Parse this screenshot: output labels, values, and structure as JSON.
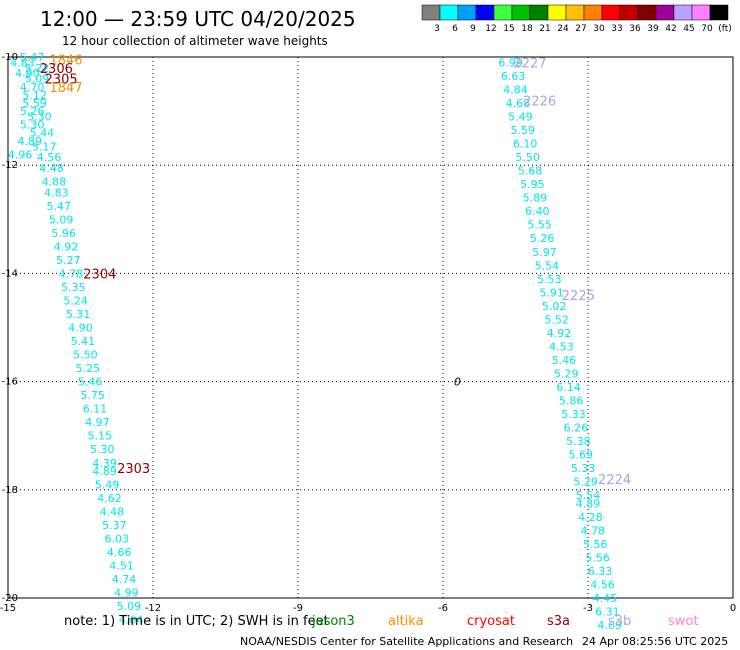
{
  "title": "12:00 — 23:59 UTC 04/20/2025",
  "subtitle": "12 hour collection of altimeter wave heights",
  "note": "note: 1) Time is in UTC; 2) SWH is in feet",
  "satellites": [
    {
      "name": "jason3",
      "color": "#008000"
    },
    {
      "name": "altika",
      "color": "#ff8c00"
    },
    {
      "name": "cryosat",
      "color": "#ff0000"
    },
    {
      "name": "s3a",
      "color": "#8b0000"
    },
    {
      "name": "s3b",
      "color": "#b0a0e0"
    },
    {
      "name": "swot",
      "color": "#ff80d0"
    }
  ],
  "credit": "NOAA/NESDIS Center for Satellite Applications and Research",
  "timestamp": "24 Apr 08:25:56 UTC 2025",
  "colorbar": {
    "labels": [
      "3",
      "6",
      "9",
      "12",
      "15",
      "18",
      "21",
      "24",
      "27",
      "30",
      "33",
      "36",
      "39",
      "42",
      "45",
      "70",
      "(ft)"
    ],
    "colors": [
      "#808080",
      "#00ffff",
      "#00a0ff",
      "#0000ff",
      "#40ff40",
      "#00c000",
      "#008000",
      "#ffff00",
      "#ffc000",
      "#ff8000",
      "#ff0000",
      "#c00000",
      "#800000",
      "#a000a0",
      "#c0a0ff",
      "#ff80ff",
      "#000000"
    ]
  },
  "chart_data": {
    "type": "scatter",
    "xlim": [
      -15,
      0
    ],
    "ylim": [
      -20,
      -10
    ],
    "x_ticks": [
      "-15",
      "-12",
      "-9",
      "-6",
      "-3",
      "0"
    ],
    "y_ticks": [
      "-10",
      "-12",
      "-14",
      "-16",
      "-18",
      "-20"
    ],
    "grid": true,
    "annotations": [
      {
        "text": "0",
        "x": -5.7,
        "y": -16.0,
        "color": "#000000"
      }
    ],
    "pass_labels": [
      {
        "text": "1846",
        "x": -13.8,
        "y": -10.05,
        "color": "#ff8c00"
      },
      {
        "text": "2306",
        "x": -14.0,
        "y": -10.2,
        "color": "#8b0000"
      },
      {
        "text": "2305",
        "x": -13.9,
        "y": -10.4,
        "color": "#8b0000"
      },
      {
        "text": "1847",
        "x": -13.8,
        "y": -10.55,
        "color": "#ff8c00"
      },
      {
        "text": "2304",
        "x": -13.1,
        "y": -14.0,
        "color": "#8b0000"
      },
      {
        "text": "2303",
        "x": -12.4,
        "y": -17.6,
        "color": "#8b0000"
      },
      {
        "text": "2227",
        "x": -4.2,
        "y": -10.1,
        "color": "#b0a0e0"
      },
      {
        "text": "2226",
        "x": -4.0,
        "y": -10.8,
        "color": "#b0a0e0"
      },
      {
        "text": "2225",
        "x": -3.2,
        "y": -14.4,
        "color": "#b0a0e0"
      },
      {
        "text": "2224",
        "x": -2.45,
        "y": -17.8,
        "color": "#b0a0e0"
      }
    ],
    "series": [
      {
        "color": "#00e5ee",
        "points": [
          {
            "x": -14.5,
            "y": -10.0,
            "v": "5.47"
          },
          {
            "x": -14.7,
            "y": -10.1,
            "v": "4.83"
          },
          {
            "x": -14.4,
            "y": -10.2,
            "v": "5.22"
          },
          {
            "x": -14.6,
            "y": -10.3,
            "v": "4.90"
          },
          {
            "x": -14.4,
            "y": -10.4,
            "v": "5.09"
          },
          {
            "x": -14.5,
            "y": -10.55,
            "v": "4.70"
          },
          {
            "x": -14.45,
            "y": -10.7,
            "v": "5.12"
          },
          {
            "x": -14.45,
            "y": -10.85,
            "v": "5.59"
          },
          {
            "x": -14.5,
            "y": -11.0,
            "v": "5.26"
          },
          {
            "x": -14.35,
            "y": -11.1,
            "v": "5.30"
          },
          {
            "x": -14.5,
            "y": -11.25,
            "v": "5.30"
          },
          {
            "x": -14.3,
            "y": -11.4,
            "v": "5.44"
          },
          {
            "x": -14.55,
            "y": -11.55,
            "v": "4.89"
          },
          {
            "x": -14.25,
            "y": -11.65,
            "v": "5.17"
          },
          {
            "x": -14.75,
            "y": -11.8,
            "v": "4.96"
          },
          {
            "x": -14.15,
            "y": -11.85,
            "v": "4.56"
          },
          {
            "x": -14.1,
            "y": -12.05,
            "v": "4.48"
          },
          {
            "x": -14.05,
            "y": -12.3,
            "v": "4.88"
          },
          {
            "x": -14.0,
            "y": -12.5,
            "v": "4.83"
          },
          {
            "x": -13.95,
            "y": -12.75,
            "v": "5.47"
          },
          {
            "x": -13.9,
            "y": -13.0,
            "v": "5.09"
          },
          {
            "x": -13.85,
            "y": -13.25,
            "v": "5.96"
          },
          {
            "x": -13.8,
            "y": -13.5,
            "v": "4.92"
          },
          {
            "x": -13.75,
            "y": -13.75,
            "v": "5.27"
          },
          {
            "x": -13.7,
            "y": -14.0,
            "v": "4.78"
          },
          {
            "x": -13.65,
            "y": -14.25,
            "v": "5.35"
          },
          {
            "x": -13.6,
            "y": -14.5,
            "v": "5.24"
          },
          {
            "x": -13.55,
            "y": -14.75,
            "v": "5.31"
          },
          {
            "x": -13.5,
            "y": -15.0,
            "v": "4.90"
          },
          {
            "x": -13.45,
            "y": -15.25,
            "v": "5.41"
          },
          {
            "x": -13.4,
            "y": -15.5,
            "v": "5.50"
          },
          {
            "x": -13.35,
            "y": -15.75,
            "v": "5.25"
          },
          {
            "x": -13.3,
            "y": -16.0,
            "v": "5.46"
          },
          {
            "x": -13.25,
            "y": -16.25,
            "v": "5.75"
          },
          {
            "x": -13.2,
            "y": -16.5,
            "v": "6.11"
          },
          {
            "x": -13.15,
            "y": -16.75,
            "v": "4.97"
          },
          {
            "x": -13.1,
            "y": -17.0,
            "v": "5.15"
          },
          {
            "x": -13.05,
            "y": -17.25,
            "v": "5.30"
          },
          {
            "x": -13.0,
            "y": -17.5,
            "v": "4.39"
          },
          {
            "x": -13.0,
            "y": -17.65,
            "v": "4.89"
          },
          {
            "x": -12.95,
            "y": -17.9,
            "v": "5.49"
          },
          {
            "x": -12.9,
            "y": -18.15,
            "v": "4.62"
          },
          {
            "x": -12.85,
            "y": -18.4,
            "v": "4.48"
          },
          {
            "x": -12.8,
            "y": -18.65,
            "v": "5.37"
          },
          {
            "x": -12.75,
            "y": -18.9,
            "v": "6.03"
          },
          {
            "x": -12.7,
            "y": -19.15,
            "v": "4.66"
          },
          {
            "x": -12.65,
            "y": -19.4,
            "v": "4.51"
          },
          {
            "x": -12.6,
            "y": -19.65,
            "v": "4.74"
          },
          {
            "x": -12.55,
            "y": -19.9,
            "v": "4.99"
          },
          {
            "x": -12.5,
            "y": -20.15,
            "v": "5.09"
          },
          {
            "x": -12.45,
            "y": -20.4,
            "v": "4.64"
          }
        ]
      },
      {
        "color": "#00e5ee",
        "points": [
          {
            "x": -4.6,
            "y": -10.1,
            "v": "6.99"
          },
          {
            "x": -4.55,
            "y": -10.35,
            "v": "6.63"
          },
          {
            "x": -4.5,
            "y": -10.6,
            "v": "4.84"
          },
          {
            "x": -4.45,
            "y": -10.85,
            "v": "4.68"
          },
          {
            "x": -4.4,
            "y": -11.1,
            "v": "5.49"
          },
          {
            "x": -4.35,
            "y": -11.35,
            "v": "5.59"
          },
          {
            "x": -4.3,
            "y": -11.6,
            "v": "6.10"
          },
          {
            "x": -4.25,
            "y": -11.85,
            "v": "5.50"
          },
          {
            "x": -4.2,
            "y": -12.1,
            "v": "5.68"
          },
          {
            "x": -4.15,
            "y": -12.35,
            "v": "5.95"
          },
          {
            "x": -4.1,
            "y": -12.6,
            "v": "5.89"
          },
          {
            "x": -4.05,
            "y": -12.85,
            "v": "6.40"
          },
          {
            "x": -4.0,
            "y": -13.1,
            "v": "5.55"
          },
          {
            "x": -3.95,
            "y": -13.35,
            "v": "5.26"
          },
          {
            "x": -3.9,
            "y": -13.6,
            "v": "5.97"
          },
          {
            "x": -3.85,
            "y": -13.85,
            "v": "5.54"
          },
          {
            "x": -3.8,
            "y": -14.1,
            "v": "5.53"
          },
          {
            "x": -3.75,
            "y": -14.35,
            "v": "5.91"
          },
          {
            "x": -3.7,
            "y": -14.6,
            "v": "5.02"
          },
          {
            "x": -3.65,
            "y": -14.85,
            "v": "5.52"
          },
          {
            "x": -3.6,
            "y": -15.1,
            "v": "4.92"
          },
          {
            "x": -3.55,
            "y": -15.35,
            "v": "4.53"
          },
          {
            "x": -3.5,
            "y": -15.6,
            "v": "5.46"
          },
          {
            "x": -3.45,
            "y": -15.85,
            "v": "5.29"
          },
          {
            "x": -3.4,
            "y": -16.1,
            "v": "6.14"
          },
          {
            "x": -3.35,
            "y": -16.35,
            "v": "5.86"
          },
          {
            "x": -3.3,
            "y": -16.6,
            "v": "5.33"
          },
          {
            "x": -3.25,
            "y": -16.85,
            "v": "6.26"
          },
          {
            "x": -3.2,
            "y": -17.1,
            "v": "5.38"
          },
          {
            "x": -3.15,
            "y": -17.35,
            "v": "5.69"
          },
          {
            "x": -3.1,
            "y": -17.6,
            "v": "5.33"
          },
          {
            "x": -3.05,
            "y": -17.85,
            "v": "5.29"
          },
          {
            "x": -3.0,
            "y": -18.1,
            "v": "5.54"
          },
          {
            "x": -3.0,
            "y": -18.25,
            "v": "4.89"
          },
          {
            "x": -2.95,
            "y": -18.5,
            "v": "4.28"
          },
          {
            "x": -2.9,
            "y": -18.75,
            "v": "4.78"
          },
          {
            "x": -2.85,
            "y": -19.0,
            "v": "5.56"
          },
          {
            "x": -2.8,
            "y": -19.25,
            "v": "5.56"
          },
          {
            "x": -2.75,
            "y": -19.5,
            "v": "6.33"
          },
          {
            "x": -2.7,
            "y": -19.75,
            "v": "4.56"
          },
          {
            "x": -2.65,
            "y": -20.0,
            "v": "4.45"
          },
          {
            "x": -2.6,
            "y": -20.25,
            "v": "6.31"
          },
          {
            "x": -2.55,
            "y": -20.5,
            "v": "4.69"
          }
        ]
      }
    ]
  }
}
